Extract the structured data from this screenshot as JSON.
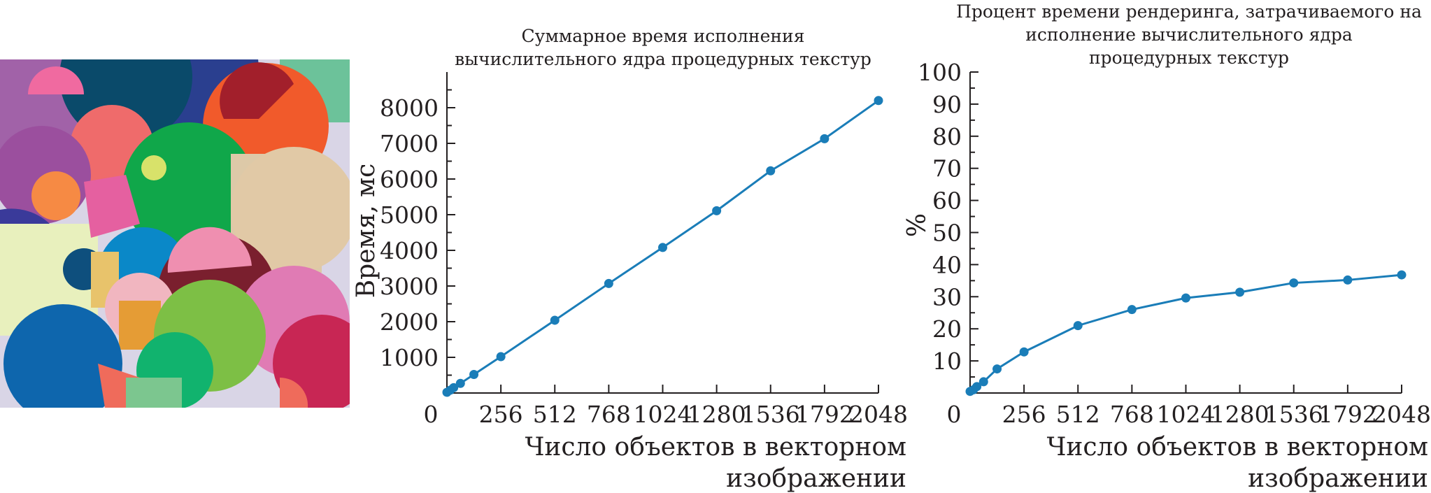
{
  "chart_data": [
    {
      "type": "line",
      "title": [
        "Суммарное время исполнения",
        "вычислительного ядра процедурных текстур"
      ],
      "xlabel": [
        "Число объектов в векторном",
        "изображении"
      ],
      "ylabel": "Время, мс",
      "x_ticks": [
        256,
        512,
        768,
        1024,
        1280,
        1536,
        1792,
        2048
      ],
      "x_origin_label": "0",
      "y_ticks": [
        1000,
        2000,
        3000,
        4000,
        5000,
        6000,
        7000,
        8000
      ],
      "xlim": [
        0,
        2048
      ],
      "ylim": [
        0,
        9000
      ],
      "color": "#1a7db8",
      "series": [
        {
          "x": [
            0,
            16,
            32,
            64,
            128,
            256,
            512,
            768,
            1024,
            1280,
            1536,
            1792,
            2048
          ],
          "values": [
            20,
            80,
            150,
            270,
            520,
            1020,
            2040,
            3070,
            4080,
            5110,
            6230,
            7130,
            8200
          ]
        }
      ]
    },
    {
      "type": "line",
      "title": [
        "Процент времени рендеринга, затрачиваемого на",
        "исполнение вычислительного ядра",
        "процедурных текстур"
      ],
      "xlabel": [
        "Число объектов в векторном",
        "изображении"
      ],
      "ylabel": "%",
      "x_ticks": [
        256,
        512,
        768,
        1024,
        1280,
        1536,
        1792,
        2048
      ],
      "x_origin_label": "0",
      "y_ticks": [
        10,
        20,
        30,
        40,
        50,
        60,
        70,
        80,
        90,
        100
      ],
      "xlim": [
        0,
        2048
      ],
      "ylim": [
        0,
        100
      ],
      "color": "#1a7db8",
      "series": [
        {
          "x": [
            0,
            16,
            32,
            64,
            128,
            256,
            512,
            768,
            1024,
            1280,
            1536,
            1792,
            2048
          ],
          "values": [
            0.5,
            1.0,
            2.0,
            3.5,
            7.5,
            12.8,
            21.0,
            26.0,
            29.6,
            31.4,
            34.3,
            35.2,
            36.8
          ]
        }
      ]
    }
  ]
}
